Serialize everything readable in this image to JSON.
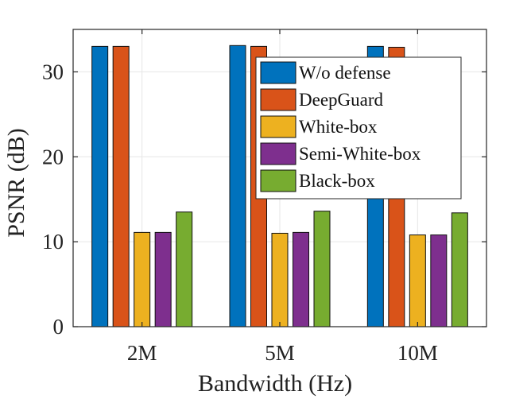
{
  "chart_data": {
    "type": "bar",
    "categories": [
      "2M",
      "5M",
      "10M"
    ],
    "series": [
      {
        "name": "W/o defense",
        "color": "#0072BD",
        "values": [
          33.0,
          33.1,
          33.0
        ]
      },
      {
        "name": "DeepGuard",
        "color": "#D95319",
        "values": [
          33.0,
          33.0,
          32.9
        ]
      },
      {
        "name": "White-box",
        "color": "#EDB120",
        "values": [
          11.1,
          11.0,
          10.8
        ]
      },
      {
        "name": "Semi-White-box",
        "color": "#7E2F8E",
        "values": [
          11.1,
          11.1,
          10.8
        ]
      },
      {
        "name": "Black-box",
        "color": "#77AC30",
        "values": [
          13.5,
          13.6,
          13.4
        ]
      }
    ],
    "title": "",
    "xlabel": "Bandwidth (Hz)",
    "ylabel": "PSNR (dB)",
    "ylim": [
      0,
      35
    ],
    "yticks": [
      0,
      10,
      20,
      30
    ],
    "grid": true,
    "legend_position": "top-right"
  }
}
